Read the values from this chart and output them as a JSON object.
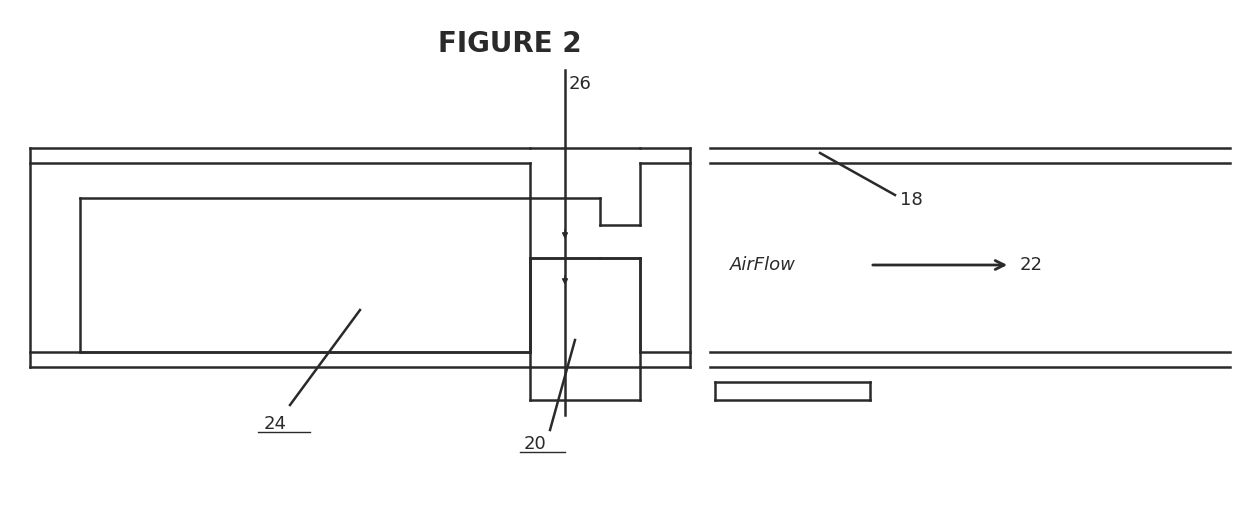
{
  "title": "FIGURE 2",
  "title_fontsize": 20,
  "title_fontweight": "bold",
  "title_fontfamily": "sans-serif",
  "bg_color": "#ffffff",
  "line_color": "#2a2a2a",
  "line_width": 1.8,
  "label_fontsize": 13,
  "label_18": "18",
  "label_20": "20",
  "label_22": "22",
  "label_24": "24",
  "label_26": "26",
  "airflow_label": "AirFlow"
}
